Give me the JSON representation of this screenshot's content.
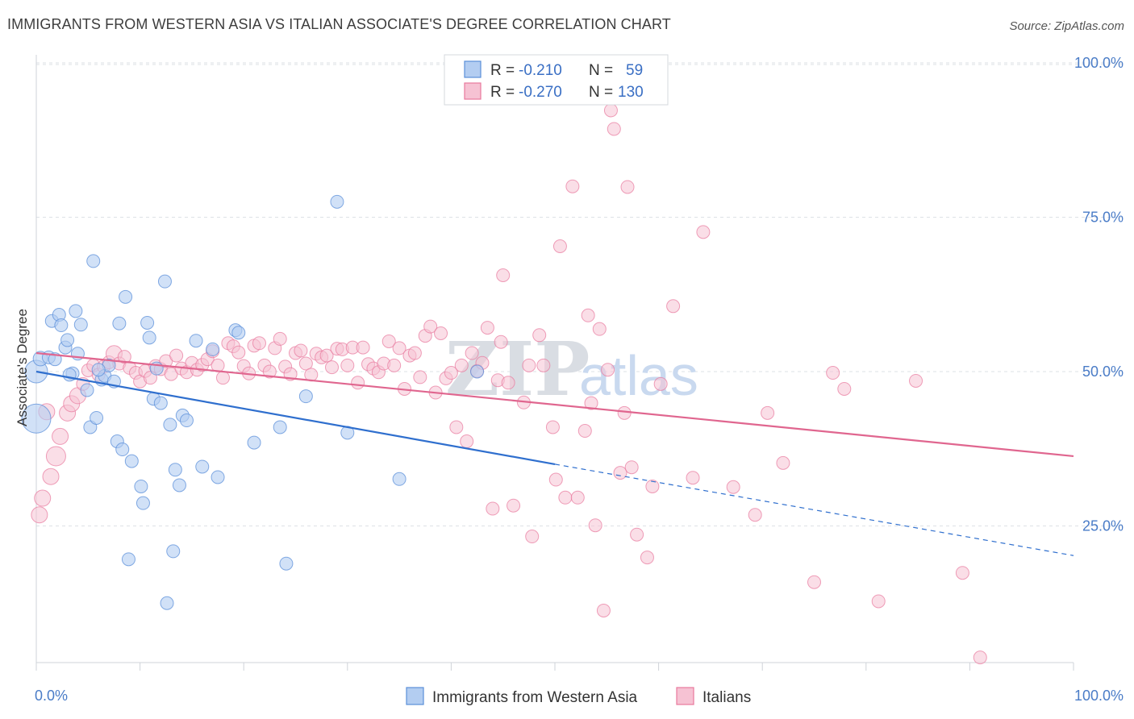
{
  "header": {
    "title": "IMMIGRANTS FROM WESTERN ASIA VS ITALIAN ASSOCIATE'S DEGREE CORRELATION CHART",
    "source": "Source: ZipAtlas.com"
  },
  "watermark": {
    "zip": "ZIP",
    "atlas": "atlas"
  },
  "colors": {
    "blue": "#5b8fd9",
    "blue_fill": "#b3cdf1",
    "blue_line": "#2f6fce",
    "pink": "#e8789c",
    "pink_fill": "#f6c2d3",
    "pink_line": "#e0668f",
    "grid": "#dde1e6",
    "tick": "#4a7cc7"
  },
  "legend": {
    "r_label": "R =",
    "n_label": "N =",
    "rows": [
      {
        "r": "-0.210",
        "n": "59"
      },
      {
        "r": "-0.270",
        "n": "130"
      }
    ]
  },
  "chart_data": {
    "type": "scatter",
    "title": "IMMIGRANTS FROM WESTERN ASIA VS ITALIAN ASSOCIATE'S DEGREE CORRELATION CHART",
    "xlabel": "",
    "ylabel": "Associate's Degree",
    "xlim": [
      0,
      100
    ],
    "ylim": [
      0,
      100
    ],
    "x_tick_labels": [
      "0.0%",
      "100.0%"
    ],
    "y_ticks": [
      25,
      50,
      75,
      100
    ],
    "y_tick_labels": [
      "25.0%",
      "50.0%",
      "75.0%",
      "100.0%"
    ],
    "grid": true,
    "legend_position": "top-center",
    "series": [
      {
        "name": "Immigrants from Western Asia",
        "r": -0.21,
        "n": 59,
        "trend": {
          "x0": 0,
          "y0": 50.0,
          "x_solid_end": 50,
          "y_solid_end": 35.0,
          "x1": 100,
          "y1": 20.2
        },
        "points": [
          [
            0,
            42.4,
            18
          ],
          [
            0,
            50.0,
            14
          ],
          [
            0.4,
            52.1,
            9
          ],
          [
            1.2,
            52.3,
            8
          ],
          [
            1.5,
            58.2,
            8
          ],
          [
            2.2,
            59.2,
            8
          ],
          [
            2.4,
            57.5,
            8
          ],
          [
            2.8,
            53.9,
            8
          ],
          [
            3.0,
            55.1,
            8
          ],
          [
            3.5,
            49.7,
            8
          ],
          [
            3.8,
            59.8,
            8
          ],
          [
            4.0,
            52.9,
            8
          ],
          [
            4.3,
            57.6,
            8
          ],
          [
            4.9,
            47.0,
            8
          ],
          [
            5.2,
            41.0,
            8
          ],
          [
            5.5,
            67.9,
            8
          ],
          [
            5.8,
            42.5,
            8
          ],
          [
            6.3,
            48.7,
            8
          ],
          [
            6.6,
            49.3,
            8
          ],
          [
            7.0,
            51.0,
            8
          ],
          [
            7.5,
            48.4,
            8
          ],
          [
            7.8,
            38.7,
            8
          ],
          [
            8.0,
            57.8,
            8
          ],
          [
            8.3,
            37.4,
            8
          ],
          [
            8.6,
            62.1,
            8
          ],
          [
            8.9,
            19.6,
            8
          ],
          [
            9.2,
            35.5,
            8
          ],
          [
            10.1,
            31.4,
            8
          ],
          [
            10.3,
            28.7,
            8
          ],
          [
            10.7,
            57.9,
            8
          ],
          [
            10.9,
            55.5,
            8
          ],
          [
            11.3,
            45.6,
            8
          ],
          [
            12.0,
            44.9,
            8
          ],
          [
            12.4,
            64.6,
            8
          ],
          [
            12.6,
            12.5,
            8
          ],
          [
            12.9,
            41.4,
            8
          ],
          [
            13.2,
            20.9,
            8
          ],
          [
            13.4,
            34.1,
            8
          ],
          [
            13.8,
            31.6,
            8
          ],
          [
            14.1,
            42.9,
            8
          ],
          [
            14.5,
            42.1,
            8
          ],
          [
            15.4,
            55.0,
            8
          ],
          [
            16.0,
            34.6,
            8
          ],
          [
            17.0,
            53.6,
            8
          ],
          [
            17.5,
            32.9,
            8
          ],
          [
            19.2,
            56.7,
            8
          ],
          [
            19.5,
            56.3,
            8
          ],
          [
            21.0,
            38.5,
            8
          ],
          [
            23.5,
            41.0,
            8
          ],
          [
            24.1,
            18.9,
            8
          ],
          [
            26.0,
            46.0,
            8
          ],
          [
            29.0,
            77.5,
            8
          ],
          [
            30.0,
            40.1,
            8
          ],
          [
            35.0,
            32.6,
            8
          ],
          [
            42.5,
            50.0,
            8
          ],
          [
            3.2,
            49.5,
            8
          ],
          [
            6.0,
            50.3,
            8
          ],
          [
            11.6,
            50.5,
            8
          ],
          [
            1.8,
            52.0,
            8
          ]
        ]
      },
      {
        "name": "Italians",
        "r": -0.27,
        "n": 130,
        "trend": {
          "x0": 0,
          "y0": 53.0,
          "x1": 100,
          "y1": 36.3
        },
        "points": [
          [
            0.3,
            26.8,
            10
          ],
          [
            0.6,
            29.5,
            10
          ],
          [
            1.0,
            43.5,
            10
          ],
          [
            1.4,
            33.0,
            10
          ],
          [
            1.9,
            36.3,
            12
          ],
          [
            2.3,
            39.5,
            10
          ],
          [
            3.0,
            43.3,
            10
          ],
          [
            3.4,
            44.8,
            10
          ],
          [
            4.0,
            46.1,
            10
          ],
          [
            4.5,
            48.0,
            8
          ],
          [
            5.0,
            50.2,
            8
          ],
          [
            5.5,
            51.0,
            8
          ],
          [
            6.0,
            49.5,
            8
          ],
          [
            6.5,
            50.8,
            8
          ],
          [
            7.0,
            51.5,
            8
          ],
          [
            7.5,
            52.9,
            10
          ],
          [
            8.0,
            51.3,
            8
          ],
          [
            8.5,
            52.4,
            8
          ],
          [
            9.0,
            50.6,
            8
          ],
          [
            9.6,
            49.8,
            8
          ],
          [
            10.0,
            48.4,
            8
          ],
          [
            10.5,
            50.1,
            8
          ],
          [
            11.0,
            49.0,
            8
          ],
          [
            11.5,
            50.9,
            8
          ],
          [
            12.0,
            50.4,
            8
          ],
          [
            12.5,
            51.7,
            8
          ],
          [
            13.0,
            49.6,
            8
          ],
          [
            13.5,
            52.6,
            8
          ],
          [
            14.0,
            50.5,
            8
          ],
          [
            14.5,
            49.9,
            8
          ],
          [
            15.0,
            51.4,
            8
          ],
          [
            15.5,
            50.3,
            8
          ],
          [
            16.0,
            51.1,
            8
          ],
          [
            16.5,
            52.0,
            8
          ],
          [
            17.0,
            53.3,
            8
          ],
          [
            17.5,
            51.0,
            8
          ],
          [
            18.0,
            49.0,
            8
          ],
          [
            18.5,
            54.6,
            8
          ],
          [
            19.0,
            54.1,
            8
          ],
          [
            19.5,
            53.1,
            8
          ],
          [
            20.0,
            50.9,
            8
          ],
          [
            20.5,
            49.7,
            8
          ],
          [
            21.0,
            54.2,
            8
          ],
          [
            21.5,
            54.6,
            8
          ],
          [
            22.0,
            51.0,
            8
          ],
          [
            22.5,
            50.0,
            8
          ],
          [
            23.0,
            53.8,
            8
          ],
          [
            23.5,
            55.3,
            8
          ],
          [
            24.0,
            50.8,
            8
          ],
          [
            24.5,
            49.6,
            8
          ],
          [
            25.0,
            53.0,
            8
          ],
          [
            25.5,
            53.4,
            8
          ],
          [
            26.0,
            51.3,
            8
          ],
          [
            26.5,
            49.5,
            8
          ],
          [
            27.0,
            52.9,
            8
          ],
          [
            27.5,
            52.3,
            8
          ],
          [
            28.0,
            52.6,
            8
          ],
          [
            28.5,
            50.7,
            8
          ],
          [
            29.0,
            53.7,
            8
          ],
          [
            29.5,
            53.6,
            8
          ],
          [
            30.0,
            51.0,
            8
          ],
          [
            30.5,
            53.9,
            8
          ],
          [
            31.0,
            48.2,
            8
          ],
          [
            31.5,
            53.9,
            8
          ],
          [
            32.0,
            51.2,
            8
          ],
          [
            32.5,
            50.5,
            8
          ],
          [
            33.0,
            49.9,
            8
          ],
          [
            33.5,
            51.3,
            8
          ],
          [
            34.0,
            54.9,
            8
          ],
          [
            34.5,
            51.0,
            8
          ],
          [
            35.0,
            53.8,
            8
          ],
          [
            35.5,
            47.2,
            8
          ],
          [
            36.0,
            52.6,
            8
          ],
          [
            36.5,
            53.0,
            8
          ],
          [
            37.0,
            49.1,
            8
          ],
          [
            37.5,
            55.8,
            8
          ],
          [
            38.0,
            57.3,
            8
          ],
          [
            38.5,
            46.6,
            8
          ],
          [
            39.0,
            56.2,
            8
          ],
          [
            39.5,
            48.9,
            8
          ],
          [
            40.0,
            49.8,
            8
          ],
          [
            40.5,
            41.0,
            8
          ],
          [
            41.0,
            51.0,
            8
          ],
          [
            41.5,
            38.7,
            8
          ],
          [
            42.5,
            50.1,
            8
          ],
          [
            43.0,
            51.4,
            8
          ],
          [
            43.5,
            57.1,
            8
          ],
          [
            44.0,
            27.8,
            8
          ],
          [
            44.5,
            48.6,
            8
          ],
          [
            45.0,
            65.6,
            8
          ],
          [
            45.5,
            48.2,
            8
          ],
          [
            46.0,
            28.3,
            8
          ],
          [
            47.0,
            45.0,
            8
          ],
          [
            47.5,
            51.0,
            8
          ],
          [
            47.8,
            23.3,
            8
          ],
          [
            48.5,
            55.9,
            8
          ],
          [
            48.9,
            51.0,
            8
          ],
          [
            49.8,
            41.0,
            8
          ],
          [
            50.1,
            32.5,
            8
          ],
          [
            50.5,
            70.3,
            8
          ],
          [
            51.0,
            29.6,
            8
          ],
          [
            51.7,
            80.0,
            8
          ],
          [
            52.2,
            29.6,
            8
          ],
          [
            52.9,
            40.4,
            8
          ],
          [
            53.5,
            44.9,
            8
          ],
          [
            53.9,
            25.1,
            8
          ],
          [
            54.3,
            56.9,
            8
          ],
          [
            54.7,
            11.3,
            8
          ],
          [
            55.4,
            92.3,
            8
          ],
          [
            55.7,
            89.3,
            8
          ],
          [
            56.3,
            33.6,
            8
          ],
          [
            56.7,
            43.3,
            8
          ],
          [
            57.0,
            79.9,
            8
          ],
          [
            57.4,
            34.5,
            8
          ],
          [
            57.9,
            23.6,
            8
          ],
          [
            58.9,
            19.9,
            8
          ],
          [
            59.4,
            31.4,
            8
          ],
          [
            61.4,
            60.6,
            8
          ],
          [
            63.3,
            32.8,
            8
          ],
          [
            64.3,
            72.6,
            8
          ],
          [
            67.2,
            31.3,
            8
          ],
          [
            69.3,
            26.8,
            8
          ],
          [
            70.5,
            43.3,
            8
          ],
          [
            72.0,
            35.2,
            8
          ],
          [
            75.0,
            15.9,
            8
          ],
          [
            76.8,
            49.8,
            8
          ],
          [
            77.9,
            47.2,
            8
          ],
          [
            81.2,
            12.8,
            8
          ],
          [
            84.8,
            48.5,
            8
          ],
          [
            89.3,
            17.4,
            8
          ],
          [
            91.0,
            3.7,
            8
          ],
          [
            53.2,
            59.1,
            8
          ],
          [
            55.1,
            50.3,
            8
          ],
          [
            60.2,
            48.0,
            8
          ],
          [
            44.8,
            54.8,
            8
          ],
          [
            42.0,
            53.0,
            8
          ]
        ]
      }
    ]
  },
  "bottom_legend": [
    "Immigrants from Western Asia",
    "Italians"
  ]
}
